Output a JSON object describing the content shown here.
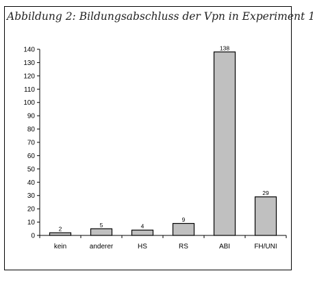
{
  "chart_data": {
    "type": "bar",
    "title": "Abbildung 2: Bildungsabschluss der Vpn in Experiment 1",
    "xlabel": "",
    "ylabel": "",
    "categories": [
      "kein",
      "anderer",
      "HS",
      "RS",
      "ABI",
      "FH/UNI"
    ],
    "values": [
      2,
      5,
      4,
      9,
      138,
      29
    ],
    "data_labels": [
      "2",
      "5",
      "4",
      "9",
      "138",
      "29"
    ],
    "ylim": [
      0,
      140
    ],
    "yticks": [
      0,
      10,
      20,
      30,
      40,
      50,
      60,
      70,
      80,
      90,
      100,
      110,
      120,
      130,
      140
    ],
    "grid": false,
    "legend": "none",
    "bar_color": "#c0c0c0",
    "edge_color": "#000000"
  }
}
